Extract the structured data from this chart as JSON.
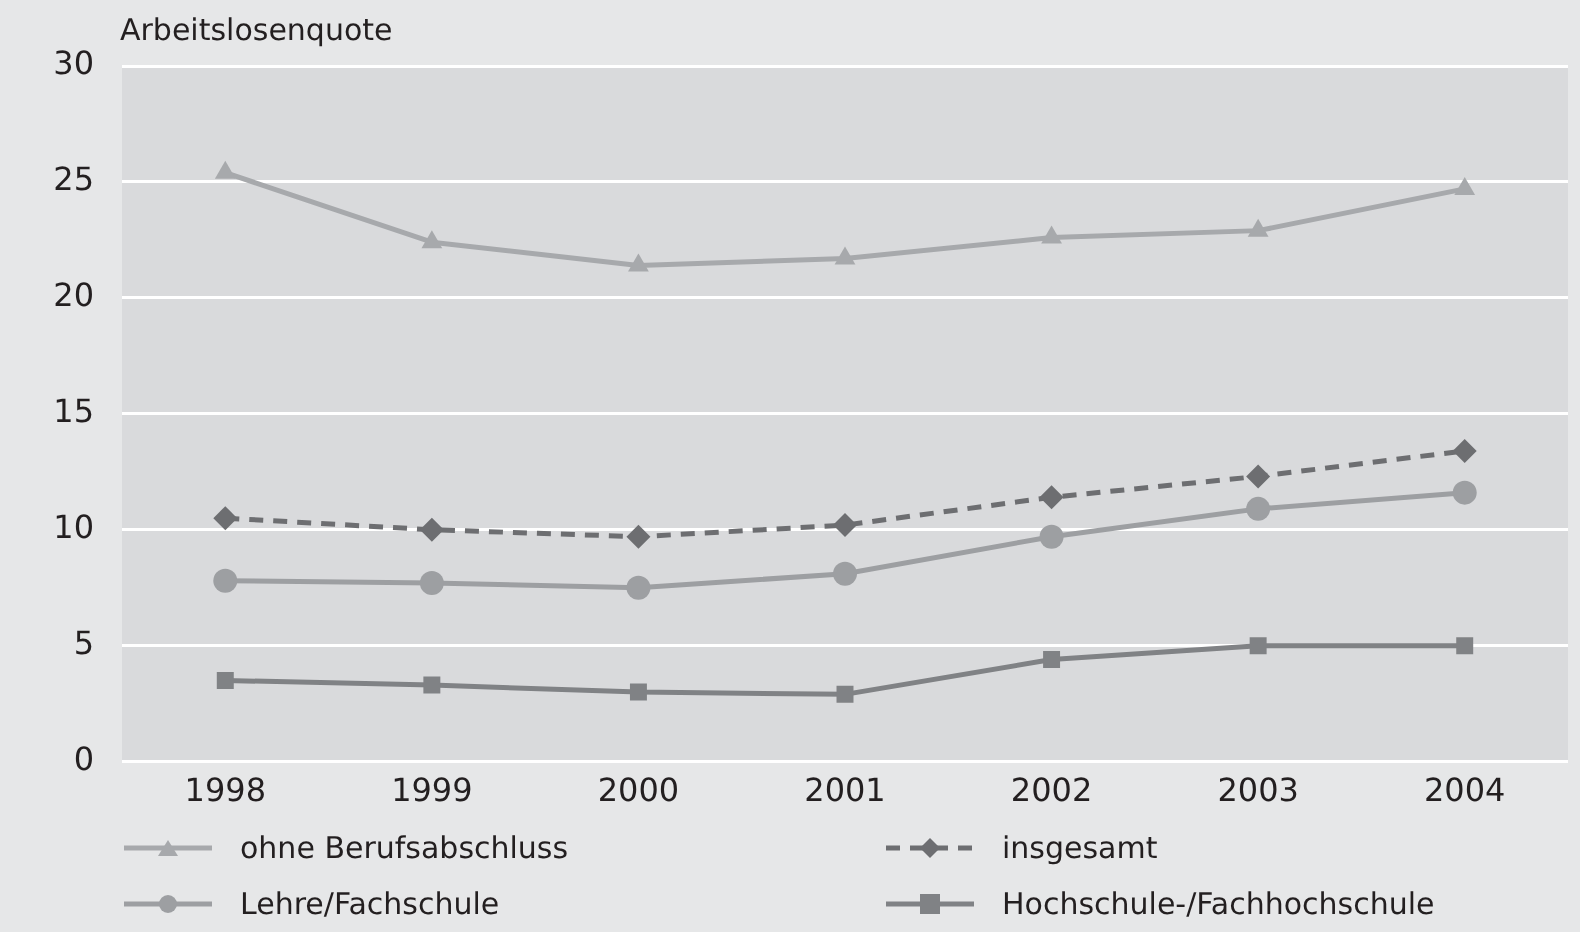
{
  "chart_data": {
    "type": "line",
    "ylabel": "Arbeitslosenquote",
    "categories": [
      "1998",
      "1999",
      "2000",
      "2001",
      "2002",
      "2003",
      "2004"
    ],
    "ylim": [
      0,
      30
    ],
    "yticks": [
      0,
      5,
      10,
      15,
      20,
      25,
      30
    ],
    "grid": "y",
    "legend": "bottom",
    "series": [
      {
        "name": "ohne Berufsabschluss",
        "color": "#a7a9ac",
        "marker": "triangle",
        "line_style": "solid",
        "values": [
          25.4,
          22.4,
          21.4,
          21.7,
          22.6,
          22.9,
          24.7
        ]
      },
      {
        "name": "insgesamt",
        "color": "#6d6e71",
        "marker": "diamond",
        "line_style": "dashed",
        "values": [
          10.5,
          10.0,
          9.7,
          10.2,
          11.4,
          12.3,
          13.4
        ]
      },
      {
        "name": "Lehre/Fachschule",
        "color": "#9d9fa2",
        "marker": "circle",
        "line_style": "solid",
        "values": [
          7.8,
          7.7,
          7.5,
          8.1,
          9.7,
          10.9,
          11.6
        ]
      },
      {
        "name": "Hochschule-/Fachhochschule",
        "color": "#808285",
        "marker": "square",
        "line_style": "solid",
        "values": [
          3.5,
          3.3,
          3.0,
          2.9,
          4.4,
          5.0,
          5.0
        ]
      }
    ]
  }
}
